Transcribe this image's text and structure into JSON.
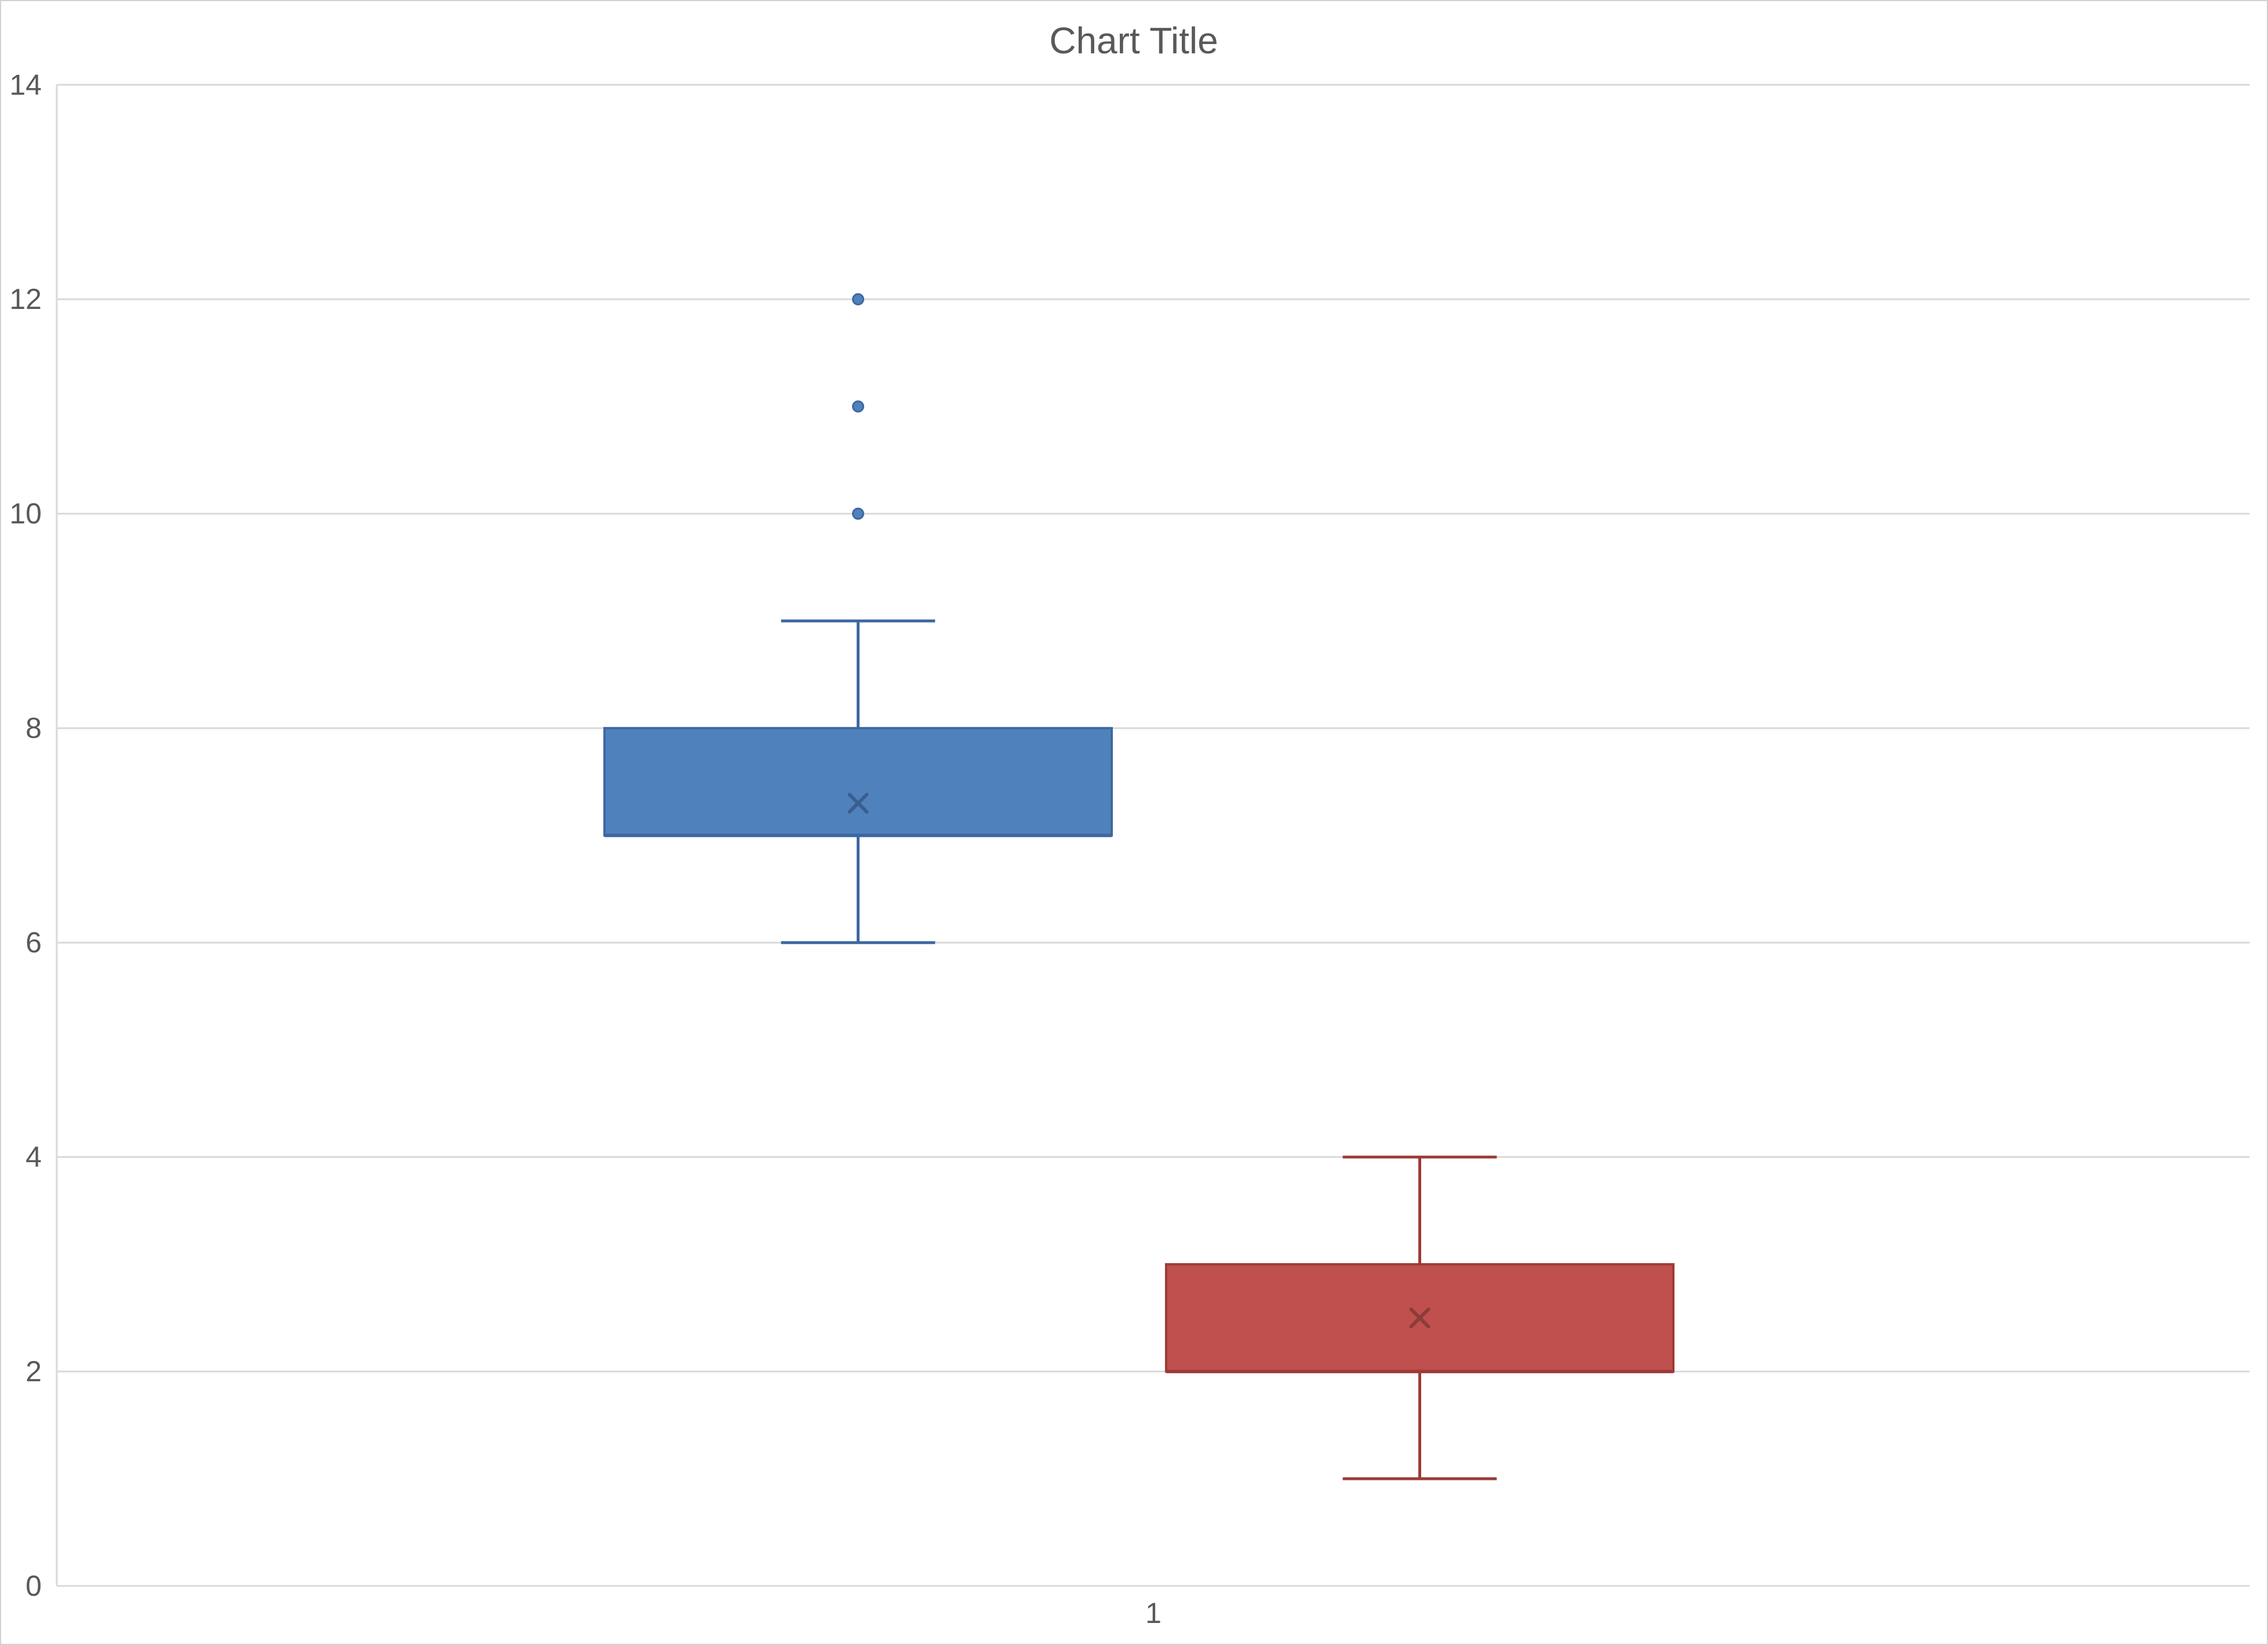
{
  "chart_title": "Chart Title",
  "chart_data": {
    "type": "box",
    "title": "Chart Title",
    "categories": [
      "1"
    ],
    "y_axis": {
      "min": 0,
      "max": 14,
      "tick_interval": 2,
      "tick_labels": [
        "0",
        "2",
        "4",
        "6",
        "8",
        "10",
        "12",
        "14"
      ],
      "gridlines": true
    },
    "legend": "none",
    "series": [
      {
        "category": "1",
        "fill_color": "#4F81BD",
        "line_color": "#3E68A2",
        "mean_marker_color": "#3B5E8F",
        "box": {
          "whisker_low": 6,
          "q1": 7,
          "median": 7,
          "q3": 8,
          "whisker_high": 9,
          "mean": 7.3,
          "outliers": [
            10,
            11,
            12
          ]
        }
      },
      {
        "category": "1",
        "fill_color": "#C0504D",
        "line_color": "#9E3B38",
        "mean_marker_color": "#8B3C39",
        "box": {
          "whisker_low": 1,
          "q1": 2,
          "median": 2,
          "q3": 3,
          "whisker_high": 4,
          "mean": 2.5,
          "outliers": []
        }
      }
    ]
  },
  "styles": {
    "text_color": "#595959",
    "gridline_color": "#D9D9D9",
    "axis_line_color": "#D9D9D9",
    "background_color": "#FFFFFF",
    "border_color": "#D2D2D2"
  }
}
